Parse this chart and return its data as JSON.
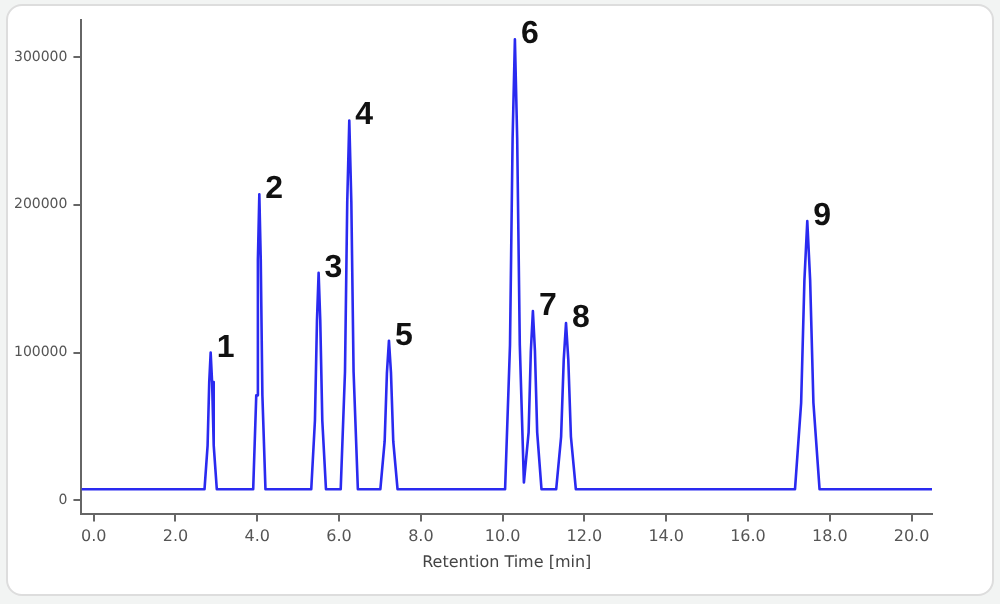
{
  "chart_data": {
    "type": "line",
    "xlabel": "Retention Time [min]",
    "x": [
      -0.3,
      2.71,
      2.785,
      2.825,
      2.86,
      2.895,
      2.935,
      3.01,
      3.9,
      3.975,
      4.015,
      4.05,
      4.085,
      4.125,
      4.2,
      5.32,
      5.41,
      5.46,
      5.5,
      5.54,
      5.59,
      5.68,
      6.04,
      6.145,
      6.2,
      6.25,
      6.3,
      6.355,
      6.46,
      7.01,
      7.115,
      7.17,
      7.22,
      7.27,
      7.325,
      7.43,
      10.06,
      10.18,
      10.244,
      10.3,
      10.356,
      10.42,
      10.52,
      10.635,
      10.69,
      10.74,
      10.79,
      10.845,
      10.95,
      11.31,
      11.43,
      11.494,
      11.55,
      11.606,
      11.67,
      11.79,
      17.15,
      17.3,
      17.38,
      17.45,
      17.52,
      17.6,
      17.75,
      20.5
    ],
    "series": [
      {
        "color": "#2a2af0",
        "values": [
          7500,
          7500,
          37000,
          80000,
          100000,
          80000,
          37000,
          7500,
          7500,
          71000,
          163000,
          207000,
          163000,
          71000,
          7500,
          7500,
          54000,
          122000,
          154000,
          122000,
          54000,
          7500,
          7500,
          87000,
          202000,
          257000,
          202000,
          87000,
          7500,
          7500,
          40000,
          86000,
          108000,
          86000,
          40000,
          7500,
          7500,
          105000,
          245000,
          312000,
          245000,
          105000,
          12000,
          46000,
          101000,
          128000,
          101000,
          46000,
          7500,
          7500,
          43000,
          95000,
          120000,
          95000,
          43000,
          7500,
          7500,
          66000,
          149000,
          189000,
          149000,
          66000,
          7500,
          7500
        ]
      }
    ],
    "xlim": [
      -0.3,
      20.5
    ],
    "ylim": [
      -9000,
      325000
    ],
    "xticks": [
      {
        "value": 0,
        "label": "0.0"
      },
      {
        "value": 2,
        "label": "2.0"
      },
      {
        "value": 4,
        "label": "4.0"
      },
      {
        "value": 6,
        "label": "6.0"
      },
      {
        "value": 8,
        "label": "8.0"
      },
      {
        "value": 10,
        "label": "10.0"
      },
      {
        "value": 12,
        "label": "12.0"
      },
      {
        "value": 14,
        "label": "14.0"
      },
      {
        "value": 16,
        "label": "16.0"
      },
      {
        "value": 18,
        "label": "18.0"
      },
      {
        "value": 20,
        "label": "20.0"
      }
    ],
    "yticks": [
      0,
      100000,
      200000,
      300000
    ],
    "annotations": [
      {
        "text": "1",
        "x": 2.86,
        "y": 100000
      },
      {
        "text": "2",
        "x": 4.05,
        "y": 207000
      },
      {
        "text": "3",
        "x": 5.5,
        "y": 154000
      },
      {
        "text": "4",
        "x": 6.25,
        "y": 257000
      },
      {
        "text": "5",
        "x": 7.22,
        "y": 108000
      },
      {
        "text": "6",
        "x": 10.3,
        "y": 312000
      },
      {
        "text": "7",
        "x": 10.74,
        "y": 128000
      },
      {
        "text": "8",
        "x": 11.55,
        "y": 120000
      },
      {
        "text": "9",
        "x": 17.45,
        "y": 189000
      }
    ],
    "grid": false,
    "legend": false,
    "marker": "none",
    "line_style": "solid"
  }
}
